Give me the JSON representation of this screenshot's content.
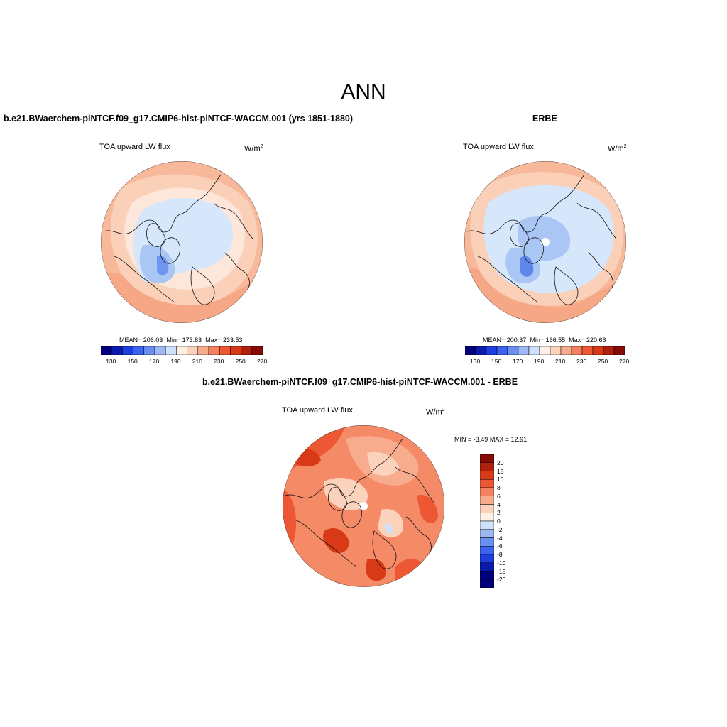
{
  "title": "ANN",
  "panels": [
    {
      "case_title": "b.e21.BWaerchem-piNTCF.f09_g17.CMIP6-hist-piNTCF-WACCM.001 (yrs 1851-1880)",
      "variable": "TOA upward LW flux",
      "units_base": "W/m",
      "units_exp": "2",
      "mean_label": "MEAN=",
      "mean": "206.03",
      "min_label": "Min=",
      "min": "173.83",
      "max_label": "Max=",
      "max": "233.53"
    },
    {
      "case_title": "ERBE",
      "variable": "TOA upward LW flux",
      "units_base": "W/m",
      "units_exp": "2",
      "mean_label": "MEAN=",
      "mean": "200.37",
      "min_label": "Min=",
      "min": "166.55",
      "max_label": "Max=",
      "max": "220.66"
    }
  ],
  "colorbar": {
    "tick_labels": [
      "130",
      "150",
      "170",
      "190",
      "210",
      "230",
      "250",
      "270"
    ],
    "colors": [
      "#00007f",
      "#0a1aad",
      "#1c3ee0",
      "#3b63f0",
      "#6a8ff0",
      "#9db8f5",
      "#cfe2fb",
      "#fdf0e6",
      "#fbd2bb",
      "#f7ad8d",
      "#f38060",
      "#ed5733",
      "#d83a18",
      "#b0200e",
      "#840b06"
    ]
  },
  "diff_panel": {
    "case_title": "b.e21.BWaerchem-piNTCF.f09_g17.CMIP6-hist-piNTCF-WACCM.001 - ERBE",
    "variable": "TOA upward LW flux",
    "units_base": "W/m",
    "units_exp": "2",
    "min_label": "MIN =",
    "min": "-3.49",
    "max_label": "MAX =",
    "max": "12.91",
    "colorbar": {
      "tick_labels": [
        "20",
        "15",
        "10",
        "8",
        "6",
        "4",
        "2",
        "0",
        "-2",
        "-4",
        "-6",
        "-8",
        "-10",
        "-15",
        "-20"
      ],
      "colors": [
        "#840b06",
        "#b0200e",
        "#d83a18",
        "#ed5733",
        "#f38060",
        "#f7ad8d",
        "#fbd2bb",
        "#fdf0e6",
        "#cfe2fb",
        "#9db8f5",
        "#6a8ff0",
        "#3b63f0",
        "#1c3ee0",
        "#0a1aad",
        "#00007f",
        "#00007f"
      ]
    }
  },
  "colors": {
    "cool_land": "#d6e6fb",
    "warm_ring": "#fdd9c4",
    "diff_main": "#f58a66"
  }
}
